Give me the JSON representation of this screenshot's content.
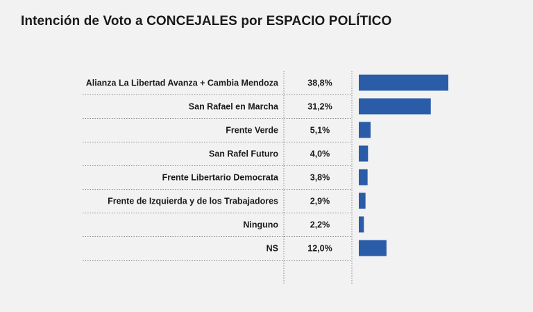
{
  "chart_data": {
    "type": "bar",
    "title": "Intención de Voto a CONCEJALES por ESPACIO POLÍTICO",
    "categories": [
      "Alianza La Libertad Avanza + Cambia Mendoza",
      "San Rafael en Marcha",
      "Frente Verde",
      "San Rafel Futuro",
      "Frente Libertario Democrata",
      "Frente de Izquierda y de los Trabajadores",
      "Ninguno",
      "NS"
    ],
    "values": [
      38.8,
      31.2,
      5.1,
      4.0,
      3.8,
      2.9,
      2.2,
      12.0
    ],
    "value_labels": [
      "38,8%",
      "31,2%",
      "5,1%",
      "4,0%",
      "3,8%",
      "2,9%",
      "2,2%",
      "12,0%"
    ],
    "unit": "%",
    "orientation": "horizontal",
    "xlim": [
      0,
      38.8
    ],
    "bar_color": "#2a5ca8",
    "grid": false
  }
}
